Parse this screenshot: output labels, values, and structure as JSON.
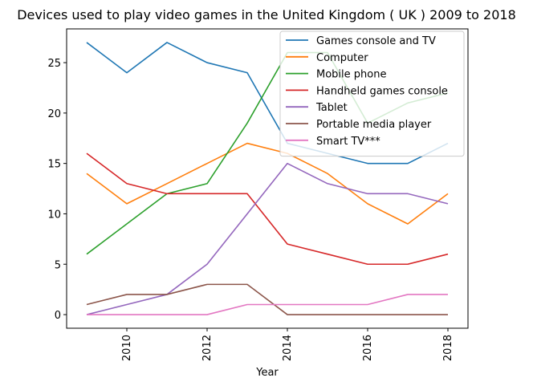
{
  "chart_data": {
    "type": "line",
    "title": "Devices used to play video games in the United Kingdom ( UK ) 2009 to 2018",
    "xlabel": "Year",
    "ylabel": "",
    "x": [
      2009,
      2010,
      2011,
      2012,
      2013,
      2014,
      2015,
      2016,
      2017,
      2018
    ],
    "xlim": [
      2008.5,
      2018.5
    ],
    "ylim": [
      -1.35,
      28.35
    ],
    "xticks": [
      2010,
      2012,
      2014,
      2016,
      2018
    ],
    "yticks": [
      0,
      5,
      10,
      15,
      20,
      25
    ],
    "grid": false,
    "legend_position": "top-right",
    "series": [
      {
        "name": "Games console and TV",
        "color": "#1f77b4",
        "values": [
          27,
          24,
          27,
          25,
          24,
          17,
          16,
          15,
          15,
          17
        ]
      },
      {
        "name": "Computer",
        "color": "#ff7f0e",
        "values": [
          14,
          11,
          13,
          15,
          17,
          16,
          14,
          11,
          9,
          12
        ]
      },
      {
        "name": "Mobile phone",
        "color": "#2ca02c",
        "values": [
          6,
          9,
          12,
          13,
          19,
          26,
          26,
          19,
          21,
          22
        ]
      },
      {
        "name": "Handheld games console",
        "color": "#d62728",
        "values": [
          16,
          13,
          12,
          12,
          12,
          7,
          6,
          5,
          5,
          6
        ]
      },
      {
        "name": "Tablet",
        "color": "#9467bd",
        "values": [
          0,
          1,
          2,
          5,
          10,
          15,
          13,
          12,
          12,
          11
        ]
      },
      {
        "name": "Portable media player",
        "color": "#8c564b",
        "values": [
          1,
          2,
          2,
          3,
          3,
          0,
          0,
          0,
          0,
          0
        ]
      },
      {
        "name": "Smart TV***",
        "color": "#e377c2",
        "values": [
          0,
          0,
          0,
          0,
          1,
          1,
          1,
          1,
          2,
          2
        ]
      }
    ]
  }
}
